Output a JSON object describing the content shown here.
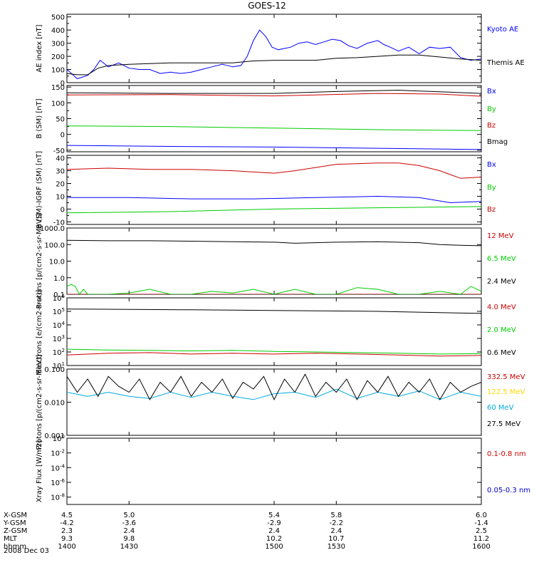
{
  "title": "GOES-12",
  "date": "2008 Dec 03",
  "x_axis": {
    "xmin": 1400,
    "xmax": 1600,
    "ticks": [
      1400,
      1430,
      1500,
      1530,
      1600
    ],
    "rows": [
      {
        "label": "X-GSM",
        "values": [
          "4.5",
          "5.0",
          "5.4",
          "5.8",
          "6.0"
        ]
      },
      {
        "label": "Y-GSM",
        "values": [
          "-4.2",
          "-3.6",
          "-2.9",
          "-2.2",
          "-1.4"
        ]
      },
      {
        "label": "Z-GSM",
        "values": [
          "2.3",
          "2.4",
          "2.4",
          "2.4",
          "2.5"
        ]
      },
      {
        "label": "MLT",
        "values": [
          "9.3",
          "9.8",
          "10.2",
          "10.7",
          "11.2"
        ]
      },
      {
        "label": "hhmm",
        "values": [
          "1400",
          "1430",
          "1500",
          "1530",
          "1600"
        ]
      }
    ]
  },
  "chart_data": [
    {
      "type": "line",
      "ylabel": "AE index [nT]",
      "scale": "linear",
      "ylim": [
        0,
        520
      ],
      "ticks": [
        0,
        100,
        200,
        300,
        400,
        500
      ],
      "tick_labels": [
        "0",
        "100",
        "200",
        "300",
        "400",
        "500"
      ],
      "minor_count": 1,
      "series": [
        {
          "name": "Kyoto AE",
          "color": "#0000ff",
          "x": [
            1400,
            1405,
            1410,
            1413,
            1416,
            1420,
            1425,
            1430,
            1435,
            1440,
            1445,
            1450,
            1455,
            1460,
            1465,
            1470,
            1475,
            1480,
            1484,
            1487,
            1490,
            1493,
            1496,
            1499,
            1502,
            1505,
            1508,
            1512,
            1516,
            1520,
            1524,
            1528,
            1532,
            1536,
            1540,
            1545,
            1550,
            1553,
            1556,
            1560,
            1565,
            1570,
            1575,
            1580,
            1585,
            1590,
            1595,
            1600
          ],
          "y": [
            100,
            30,
            55,
            100,
            170,
            120,
            150,
            110,
            100,
            100,
            70,
            80,
            70,
            80,
            100,
            120,
            140,
            120,
            130,
            200,
            320,
            400,
            350,
            270,
            250,
            260,
            270,
            300,
            310,
            290,
            310,
            330,
            320,
            280,
            260,
            300,
            320,
            290,
            270,
            240,
            270,
            220,
            270,
            260,
            270,
            190,
            170,
            180
          ]
        },
        {
          "name": "Themis AE",
          "color": "#000000",
          "x": [
            1400,
            1405,
            1410,
            1415,
            1420,
            1430,
            1440,
            1450,
            1460,
            1470,
            1480,
            1490,
            1500,
            1510,
            1520,
            1530,
            1540,
            1550,
            1560,
            1570,
            1580,
            1590,
            1600
          ],
          "y": [
            70,
            60,
            60,
            110,
            130,
            140,
            145,
            150,
            150,
            150,
            150,
            165,
            170,
            170,
            170,
            185,
            190,
            200,
            210,
            210,
            195,
            180,
            170
          ]
        }
      ]
    },
    {
      "type": "line",
      "ylabel": "B (SM) [nT]",
      "scale": "linear",
      "ylim": [
        -55,
        155
      ],
      "ticks": [
        -50,
        0,
        50,
        100,
        150
      ],
      "tick_labels": [
        "-50",
        "0",
        "50",
        "100",
        "150"
      ],
      "minor_count": 1,
      "series": [
        {
          "name": "Bx",
          "color": "#0000ff",
          "x": [
            1400,
            1450,
            1500,
            1550,
            1600
          ],
          "y": [
            -35,
            -38,
            -40,
            -44,
            -48
          ]
        },
        {
          "name": "By",
          "color": "#00cc00",
          "x": [
            1400,
            1450,
            1500,
            1550,
            1600
          ],
          "y": [
            27,
            25,
            20,
            15,
            12
          ]
        },
        {
          "name": "Bz",
          "color": "#cc0000",
          "x": [
            1400,
            1450,
            1500,
            1520,
            1550,
            1580,
            1600
          ],
          "y": [
            125,
            126,
            122,
            125,
            130,
            128,
            121
          ]
        },
        {
          "name": "Bmag",
          "color": "#000000",
          "x": [
            1400,
            1450,
            1500,
            1530,
            1560,
            1600
          ],
          "y": [
            132,
            130,
            130,
            136,
            140,
            130
          ]
        }
      ]
    },
    {
      "type": "line",
      "ylabel": "B (SM)-IGRF (SM) [nT]",
      "scale": "linear",
      "ylim": [
        -12,
        42
      ],
      "ticks": [
        -10,
        0,
        10,
        20,
        30,
        40
      ],
      "tick_labels": [
        "-10",
        "0",
        "10",
        "20",
        "30",
        "40"
      ],
      "minor_count": 1,
      "series": [
        {
          "name": "Bx",
          "color": "#0000ff",
          "x": [
            1400,
            1430,
            1460,
            1490,
            1520,
            1550,
            1570,
            1585,
            1600
          ],
          "y": [
            9,
            9,
            8,
            8,
            9,
            10,
            9,
            5,
            6
          ]
        },
        {
          "name": "By",
          "color": "#00cc00",
          "x": [
            1400,
            1450,
            1500,
            1550,
            1600
          ],
          "y": [
            -3,
            -2,
            0,
            1,
            2
          ]
        },
        {
          "name": "Bz",
          "color": "#cc0000",
          "x": [
            1400,
            1420,
            1440,
            1460,
            1480,
            1490,
            1500,
            1510,
            1530,
            1550,
            1560,
            1570,
            1580,
            1590,
            1600
          ],
          "y": [
            31,
            32,
            31,
            31,
            30,
            29,
            28,
            30,
            35,
            36,
            36,
            34,
            30,
            24,
            25
          ]
        }
      ]
    },
    {
      "type": "line",
      "ylabel": "Protons [p/(cm2-s-sr-MeV)]",
      "scale": "log",
      "ylim": [
        0.1,
        1000
      ],
      "ticks": [
        0.1,
        1,
        10,
        100,
        1000
      ],
      "tick_labels": [
        "0.1",
        "1.0",
        "10.0",
        "100.0",
        "1000.0"
      ],
      "minor_count": 0,
      "series": [
        {
          "name": "12 MeV",
          "color": "#cc0000",
          "x": [
            1400,
            1600
          ],
          "y": [
            0.1,
            0.1
          ]
        },
        {
          "name": "6.5 MeV",
          "color": "#00cc00",
          "x": [
            1400,
            1402,
            1404,
            1406,
            1408,
            1410,
            1420,
            1430,
            1440,
            1450,
            1460,
            1470,
            1480,
            1490,
            1500,
            1510,
            1520,
            1530,
            1540,
            1550,
            1560,
            1570,
            1580,
            1590,
            1595,
            1600
          ],
          "y": [
            0.3,
            0.4,
            0.3,
            0.1,
            0.2,
            0.1,
            0.1,
            0.12,
            0.2,
            0.1,
            0.1,
            0.15,
            0.12,
            0.2,
            0.1,
            0.2,
            0.1,
            0.1,
            0.25,
            0.2,
            0.1,
            0.1,
            0.15,
            0.1,
            0.3,
            0.15
          ]
        },
        {
          "name": "2.4 MeV",
          "color": "#000000",
          "x": [
            1400,
            1420,
            1440,
            1460,
            1480,
            1500,
            1510,
            1530,
            1550,
            1570,
            1580,
            1590,
            1600
          ],
          "y": [
            180,
            170,
            170,
            160,
            150,
            140,
            120,
            140,
            150,
            130,
            100,
            90,
            85
          ]
        }
      ]
    },
    {
      "type": "line",
      "ylabel": "Electrons [e/(cm2-s-sr)]",
      "scale": "log",
      "ylim": [
        10,
        1000000
      ],
      "ticks": [
        10,
        100,
        1000,
        10000,
        100000,
        1000000
      ],
      "tick_labels": [
        "10^1",
        "10^2",
        "10^3",
        "10^4",
        "10^5",
        "10^6"
      ],
      "minor_count": 0,
      "series": [
        {
          "name": "4.0 MeV",
          "color": "#cc0000",
          "x": [
            1400,
            1420,
            1440,
            1460,
            1480,
            1500,
            1520,
            1540,
            1560,
            1580,
            1600
          ],
          "y": [
            60,
            80,
            90,
            70,
            80,
            70,
            80,
            70,
            60,
            50,
            55
          ]
        },
        {
          "name": "2.0 MeV",
          "color": "#00cc00",
          "x": [
            1400,
            1420,
            1440,
            1460,
            1480,
            1500,
            1520,
            1540,
            1560,
            1580,
            1600
          ],
          "y": [
            160,
            140,
            130,
            120,
            130,
            110,
            100,
            90,
            80,
            70,
            75
          ]
        },
        {
          "name": "0.6 MeV",
          "color": "#000000",
          "x": [
            1400,
            1430,
            1460,
            1490,
            1520,
            1550,
            1580,
            1600
          ],
          "y": [
            150000,
            140000,
            130000,
            120000,
            110000,
            100000,
            80000,
            70000
          ]
        }
      ]
    },
    {
      "type": "line",
      "ylabel": "Protons [p/(cm2-s-sr-MeV)]",
      "scale": "log",
      "ylim": [
        0.001,
        0.1
      ],
      "ticks": [
        0.001,
        0.01,
        0.1
      ],
      "tick_labels": [
        "0.001",
        "0.010",
        "0.100"
      ],
      "minor_count": 0,
      "series": [
        {
          "name": "332.5 MeV",
          "color": "#cc0000",
          "x": [],
          "y": []
        },
        {
          "name": "122.5 MeV",
          "color": "#ffd700",
          "x": [],
          "y": []
        },
        {
          "name": "60 MeV",
          "color": "#00aadd",
          "x": [
            1400,
            1410,
            1420,
            1430,
            1440,
            1450,
            1460,
            1470,
            1480,
            1490,
            1500,
            1510,
            1520,
            1530,
            1540,
            1550,
            1560,
            1570,
            1580,
            1590,
            1600
          ],
          "y": [
            0.02,
            0.015,
            0.02,
            0.015,
            0.013,
            0.02,
            0.014,
            0.02,
            0.015,
            0.012,
            0.018,
            0.02,
            0.014,
            0.025,
            0.013,
            0.02,
            0.015,
            0.022,
            0.012,
            0.02,
            0.015
          ]
        },
        {
          "name": "27.5 MeV",
          "color": "#000000",
          "x": [
            1400,
            1405,
            1410,
            1415,
            1420,
            1425,
            1430,
            1435,
            1440,
            1445,
            1450,
            1455,
            1460,
            1465,
            1470,
            1475,
            1480,
            1485,
            1490,
            1495,
            1500,
            1505,
            1510,
            1515,
            1520,
            1525,
            1530,
            1535,
            1540,
            1545,
            1550,
            1555,
            1560,
            1565,
            1570,
            1575,
            1580,
            1585,
            1590,
            1595,
            1600
          ],
          "y": [
            0.06,
            0.02,
            0.05,
            0.015,
            0.06,
            0.03,
            0.02,
            0.05,
            0.012,
            0.04,
            0.02,
            0.06,
            0.015,
            0.04,
            0.02,
            0.05,
            0.013,
            0.04,
            0.025,
            0.06,
            0.012,
            0.05,
            0.02,
            0.07,
            0.015,
            0.04,
            0.02,
            0.05,
            0.012,
            0.045,
            0.02,
            0.06,
            0.015,
            0.04,
            0.02,
            0.05,
            0.012,
            0.04,
            0.02,
            0.03,
            0.04
          ]
        }
      ]
    },
    {
      "type": "line",
      "ylabel": "Xray Flux [W/m2]",
      "scale": "log",
      "ylim": [
        1e-09,
        1
      ],
      "ticks": [
        1e-08,
        1e-06,
        0.0001,
        0.01,
        1
      ],
      "tick_labels": [
        "10^-8",
        "10^-6",
        "10^-4",
        "10^-2",
        "10^0"
      ],
      "minor_count": 0,
      "series": [
        {
          "name": "0.1-0.8 nm",
          "color": "#cc0000",
          "x": [],
          "y": []
        },
        {
          "name": "0.05-0.3 nm",
          "color": "#0000cc",
          "x": [],
          "y": []
        }
      ]
    }
  ]
}
